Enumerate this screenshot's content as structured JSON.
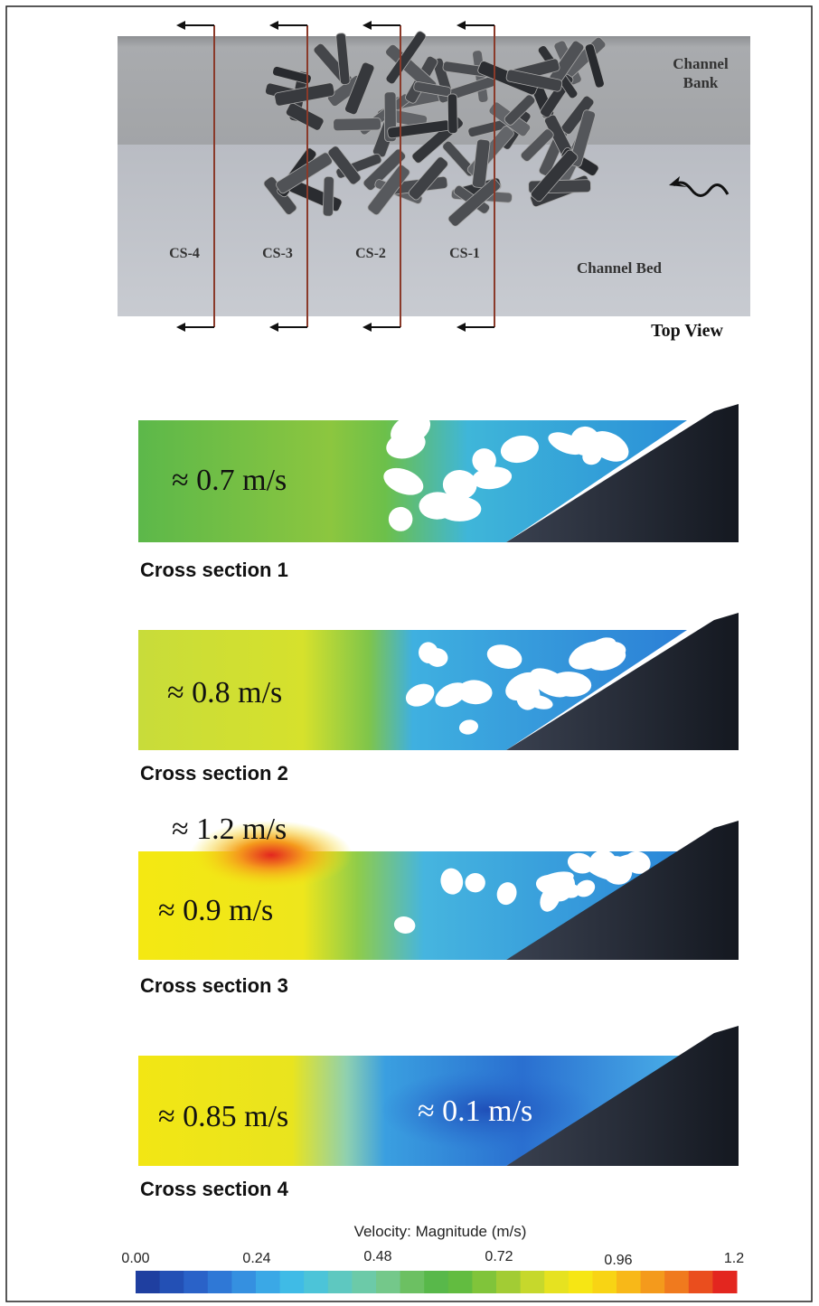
{
  "top_view": {
    "bank_label": [
      "Channel",
      "Bank"
    ],
    "bed_label": "Channel Bed",
    "view_label": "Top View",
    "sections": [
      "CS-4",
      "CS-3",
      "CS-2",
      "CS-1"
    ]
  },
  "cross_sections": [
    {
      "title": "Cross section 1",
      "annotations": [
        "≈ 0.7 m/s"
      ]
    },
    {
      "title": "Cross section 2",
      "annotations": [
        "≈ 0.8 m/s"
      ]
    },
    {
      "title": "Cross section 3",
      "annotations": [
        "≈ 1.2 m/s",
        "≈ 0.9 m/s"
      ]
    },
    {
      "title": "Cross section 4",
      "annotations": [
        "≈ 0.85 m/s",
        "≈ 0.1 m/s"
      ]
    }
  ],
  "colorbar": {
    "title": "Velocity:  Magnitude  (m/s)",
    "ticks": [
      "0.00",
      "0.24",
      "0.48",
      "0.72",
      "0.96",
      "1.2"
    ]
  }
}
